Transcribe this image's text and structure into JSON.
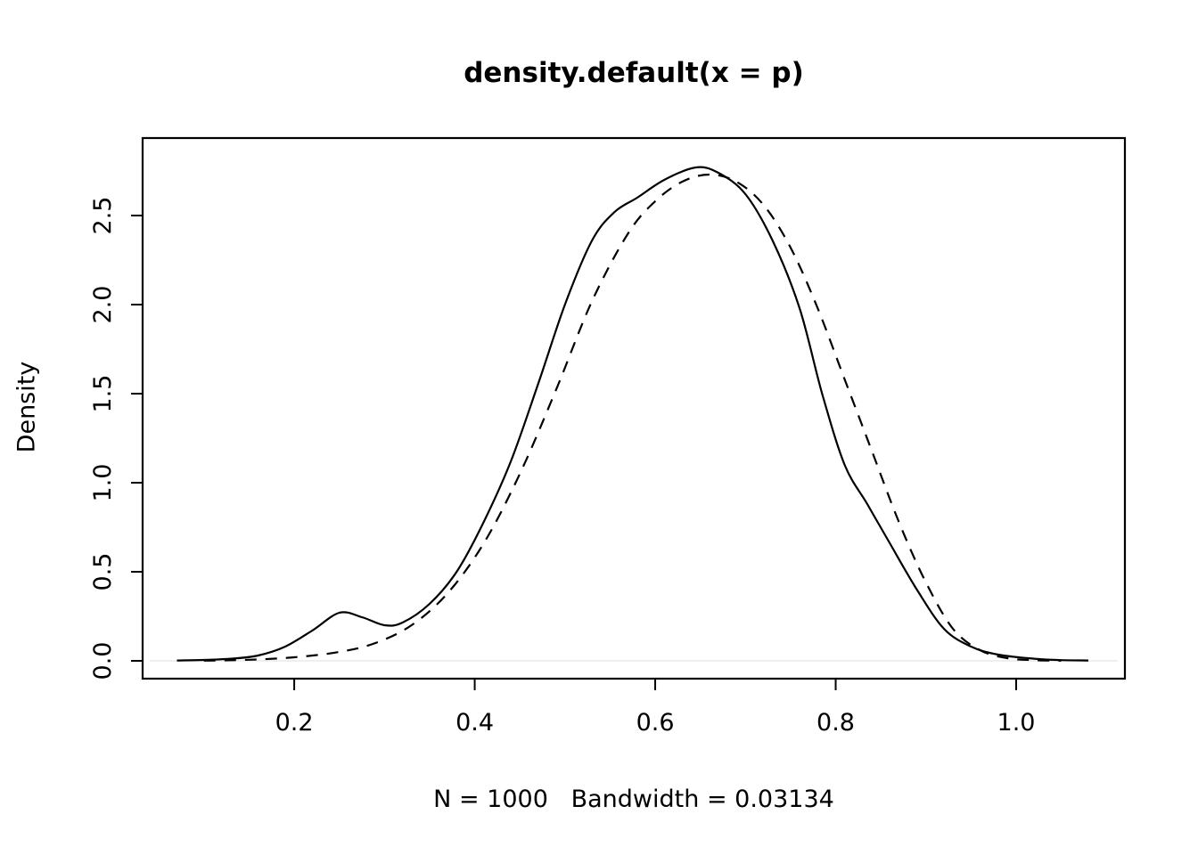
{
  "chart_data": {
    "type": "line",
    "title": "density.default(x = p)",
    "xlabel": "N = 1000   Bandwidth = 0.03134",
    "ylabel": "Density",
    "grid": false,
    "legend": "none",
    "xlim": [
      0.032,
      1.1205
    ],
    "ylim": [
      -0.1,
      2.935
    ],
    "x_tick_values": [
      0.2,
      0.4,
      0.6,
      0.8,
      1.0
    ],
    "x_tick_labels": [
      "0.2",
      "0.4",
      "0.6",
      "0.8",
      "1.0"
    ],
    "y_tick_values": [
      0.0,
      0.5,
      1.0,
      1.5,
      2.0,
      2.5
    ],
    "y_tick_labels": [
      "0.0",
      "0.5",
      "1.0",
      "1.5",
      "2.0",
      "2.5"
    ],
    "line_color": "#000000",
    "series": [
      {
        "name": "kernel-density-estimate",
        "style": "solid",
        "points": [
          [
            0.07,
            0.002
          ],
          [
            0.1,
            0.005
          ],
          [
            0.13,
            0.012
          ],
          [
            0.16,
            0.03
          ],
          [
            0.19,
            0.08
          ],
          [
            0.22,
            0.17
          ],
          [
            0.25,
            0.27
          ],
          [
            0.275,
            0.245
          ],
          [
            0.3,
            0.2
          ],
          [
            0.32,
            0.215
          ],
          [
            0.35,
            0.32
          ],
          [
            0.38,
            0.5
          ],
          [
            0.41,
            0.78
          ],
          [
            0.44,
            1.12
          ],
          [
            0.47,
            1.55
          ],
          [
            0.5,
            2.0
          ],
          [
            0.53,
            2.36
          ],
          [
            0.555,
            2.52
          ],
          [
            0.58,
            2.6
          ],
          [
            0.61,
            2.7
          ],
          [
            0.645,
            2.77
          ],
          [
            0.67,
            2.74
          ],
          [
            0.7,
            2.62
          ],
          [
            0.73,
            2.36
          ],
          [
            0.76,
            1.98
          ],
          [
            0.785,
            1.5
          ],
          [
            0.81,
            1.1
          ],
          [
            0.835,
            0.88
          ],
          [
            0.86,
            0.66
          ],
          [
            0.89,
            0.4
          ],
          [
            0.92,
            0.18
          ],
          [
            0.95,
            0.08
          ],
          [
            0.98,
            0.035
          ],
          [
            1.02,
            0.012
          ],
          [
            1.05,
            0.004
          ],
          [
            1.08,
            0.002
          ]
        ]
      },
      {
        "name": "dashed-reference-curve",
        "style": "dashed",
        "points": [
          [
            0.1,
            0.001
          ],
          [
            0.15,
            0.006
          ],
          [
            0.2,
            0.02
          ],
          [
            0.25,
            0.05
          ],
          [
            0.29,
            0.1
          ],
          [
            0.33,
            0.2
          ],
          [
            0.37,
            0.38
          ],
          [
            0.41,
            0.66
          ],
          [
            0.45,
            1.05
          ],
          [
            0.49,
            1.52
          ],
          [
            0.53,
            2.02
          ],
          [
            0.57,
            2.4
          ],
          [
            0.6,
            2.58
          ],
          [
            0.63,
            2.69
          ],
          [
            0.66,
            2.73
          ],
          [
            0.69,
            2.69
          ],
          [
            0.72,
            2.56
          ],
          [
            0.75,
            2.32
          ],
          [
            0.78,
            1.98
          ],
          [
            0.81,
            1.58
          ],
          [
            0.84,
            1.18
          ],
          [
            0.87,
            0.78
          ],
          [
            0.9,
            0.44
          ],
          [
            0.93,
            0.18
          ],
          [
            0.96,
            0.06
          ],
          [
            0.99,
            0.015
          ],
          [
            1.02,
            0.004
          ],
          [
            1.05,
            0.001
          ]
        ]
      }
    ]
  }
}
